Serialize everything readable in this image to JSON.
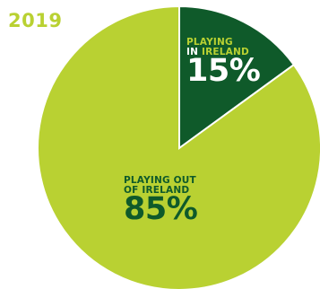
{
  "colors": {
    "lime": "#b9d132",
    "dark_green": "#0f5a2a",
    "white": "#ffffff"
  },
  "chart_data": {
    "type": "pie",
    "title": "2019",
    "slices": [
      {
        "label_line1": "PLAYING",
        "label_line2_prefix": "IN",
        "label_line2_highlight": "IRELAND",
        "value_label": "15%",
        "value": 15,
        "color": "#0f5a2a"
      },
      {
        "label_line1": "PLAYING OUT",
        "label_line2": "OF IRELAND",
        "value_label": "85%",
        "value": 85,
        "color": "#b9d132"
      }
    ]
  }
}
